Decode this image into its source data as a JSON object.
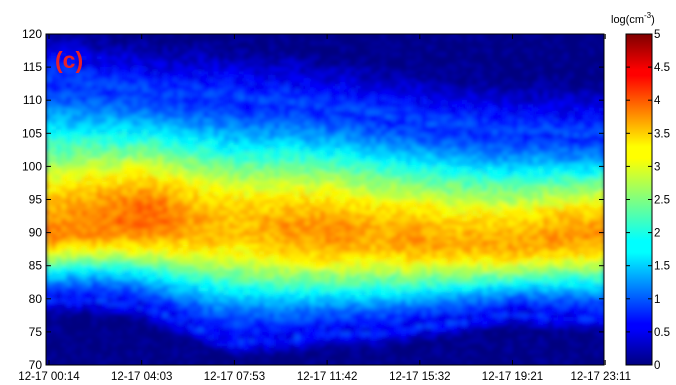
{
  "panel_label": "(c)",
  "colorbar": {
    "title_base": "log(cm",
    "title_exp": "-3",
    "title_close": ")",
    "ticks": [
      0,
      0.5,
      1,
      1.5,
      2,
      2.5,
      3,
      3.5,
      4,
      4.5,
      5
    ],
    "colormap": "jet",
    "range": [
      0,
      5
    ]
  },
  "colors": {
    "panel_label": "#e8202a",
    "axis": "#000000",
    "background_low": "#00007f",
    "background_high": "#7f0000"
  },
  "chart_data": {
    "type": "heatmap",
    "xlabel": "",
    "ylabel": "",
    "x_tick_labels": [
      "12-17 00:14",
      "12-17 04:03",
      "12-17 07:53",
      "12-17 11:42",
      "12-17 15:32",
      "12-17 19:21",
      "12-17 23:11"
    ],
    "ylim": [
      70,
      120
    ],
    "y_ticks": [
      70,
      75,
      80,
      85,
      90,
      95,
      100,
      105,
      110,
      115,
      120
    ],
    "value_scale": "log(cm^-3)",
    "value_range": [
      0,
      5
    ],
    "x_hours": [
      0.23,
      1,
      2,
      3,
      4.05,
      5,
      6,
      7,
      7.88,
      9,
      10,
      11,
      11.7,
      13,
      14,
      15,
      15.53,
      17,
      18,
      19.35,
      20,
      21,
      22,
      23.18
    ],
    "layer_profile": {
      "bottom_edge_km": [
        80,
        80,
        80,
        79.5,
        79,
        77.5,
        76,
        74.5,
        73.5,
        74,
        74,
        74.5,
        75,
        75,
        75,
        75.5,
        76,
        76.5,
        77,
        78,
        78,
        77.5,
        77.5,
        77
      ],
      "peak_altitude_km": [
        90,
        90.5,
        91,
        91.5,
        92,
        92,
        91.5,
        91,
        91,
        90.5,
        90.5,
        90,
        90,
        89.5,
        89.5,
        89,
        89,
        88.5,
        88.5,
        88,
        88.5,
        89,
        89.5,
        90
      ],
      "top_edge_km": [
        113,
        112.5,
        112,
        111.5,
        111,
        110.5,
        110.5,
        110.5,
        110,
        109.5,
        109.5,
        109,
        108.5,
        108,
        107.5,
        107,
        106.5,
        106,
        105.5,
        105,
        105,
        105,
        104.5,
        104.5
      ],
      "peak_value_log": [
        3.7,
        3.7,
        3.8,
        3.8,
        3.9,
        3.8,
        3.6,
        3.5,
        3.4,
        3.5,
        3.6,
        3.6,
        3.7,
        3.6,
        3.5,
        3.6,
        3.6,
        3.5,
        3.5,
        3.6,
        3.5,
        3.6,
        3.6,
        3.6
      ]
    }
  }
}
